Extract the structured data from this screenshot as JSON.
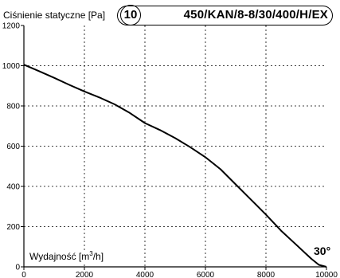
{
  "header": {
    "ylabel": "Ciśnienie statyczne [Pa]",
    "curve_number": "10",
    "model_code": "450/KAN/8-8/30/400/H/EX"
  },
  "xlabel": {
    "prefix": "Wydajność [m",
    "superscript": "3",
    "suffix": "/h]"
  },
  "chart_data": {
    "type": "line",
    "title": "",
    "xlabel": "Wydajność [m3/h]",
    "ylabel": "Ciśnienie statyczne [Pa]",
    "xlim": [
      0,
      10000
    ],
    "ylim": [
      0,
      1200
    ],
    "xticks": [
      0,
      2000,
      4000,
      6000,
      8000,
      10000
    ],
    "yticks": [
      0,
      200,
      400,
      600,
      800,
      1000,
      1200
    ],
    "grid": true,
    "grid_style": "dashed",
    "series": [
      {
        "name": "30°",
        "x": [
          0,
          500,
          1000,
          1500,
          2000,
          2500,
          3000,
          3500,
          4000,
          4500,
          5000,
          5500,
          6000,
          6500,
          7000,
          7500,
          8000,
          8500,
          9000,
          9500,
          9750,
          10000
        ],
        "y": [
          1005,
          973,
          940,
          905,
          872,
          842,
          808,
          765,
          715,
          680,
          640,
          595,
          545,
          485,
          410,
          335,
          260,
          180,
          110,
          40,
          10,
          0
        ]
      }
    ]
  }
}
